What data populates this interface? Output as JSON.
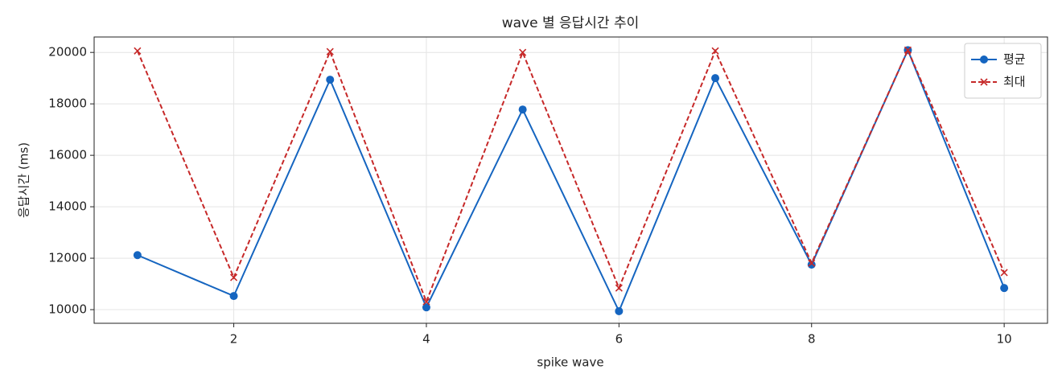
{
  "chart_data": {
    "type": "line",
    "title": "wave 별 응답시간 추이",
    "x_label": "spike wave",
    "y_label": "응답시간 (ms)",
    "x": [
      1,
      2,
      3,
      4,
      5,
      6,
      7,
      8,
      9,
      10
    ],
    "series": [
      {
        "name": "평균",
        "color": "#1565c0",
        "linestyle": "solid",
        "marker": "o",
        "values": [
          12120,
          10530,
          18940,
          10090,
          17780,
          9940,
          19000,
          11750,
          20090,
          10840
        ]
      },
      {
        "name": "최대",
        "color": "#c62828",
        "linestyle": "dashed",
        "marker": "x",
        "values": [
          20060,
          11250,
          20030,
          10310,
          20000,
          10840,
          20060,
          11810,
          20090,
          11440
        ]
      }
    ],
    "xlim": [
      0.55,
      10.45
    ],
    "xticks": [
      2,
      4,
      6,
      8,
      10
    ],
    "ylim": [
      9470,
      20600
    ],
    "yticks": [
      10000,
      12000,
      14000,
      16000,
      18000,
      20000
    ],
    "grid": true,
    "legend": "upper right"
  }
}
